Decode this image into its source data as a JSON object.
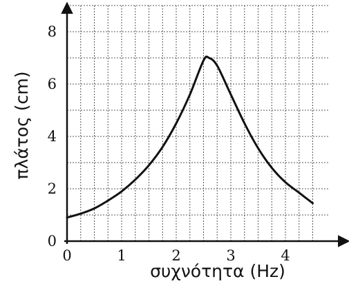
{
  "chart_data": {
    "type": "line",
    "xlabel": "συχνότητα (Hz)",
    "ylabel": "πλάτος (cm)",
    "xlim": [
      0,
      4.5
    ],
    "ylim": [
      0,
      8
    ],
    "x_ticks": [
      "0",
      "1",
      "2",
      "3",
      "4"
    ],
    "y_ticks": [
      "0",
      "2",
      "4",
      "6",
      "8"
    ],
    "grid": true,
    "x_minor_step": 0.25,
    "y_minor_step": 1,
    "series": [
      {
        "x": [
          0,
          0.25,
          0.5,
          0.75,
          1.0,
          1.25,
          1.5,
          1.75,
          2.0,
          2.25,
          2.5,
          2.6,
          2.75,
          3.0,
          3.25,
          3.5,
          3.75,
          4.0,
          4.25,
          4.5
        ],
        "y": [
          0.9,
          1.05,
          1.25,
          1.55,
          1.9,
          2.35,
          2.9,
          3.6,
          4.5,
          5.6,
          6.9,
          7.0,
          6.7,
          5.6,
          4.5,
          3.55,
          2.8,
          2.25,
          1.85,
          1.45
        ]
      }
    ]
  },
  "colors": {
    "curve": "#111111",
    "axis": "#111111",
    "grid": "#555555"
  }
}
